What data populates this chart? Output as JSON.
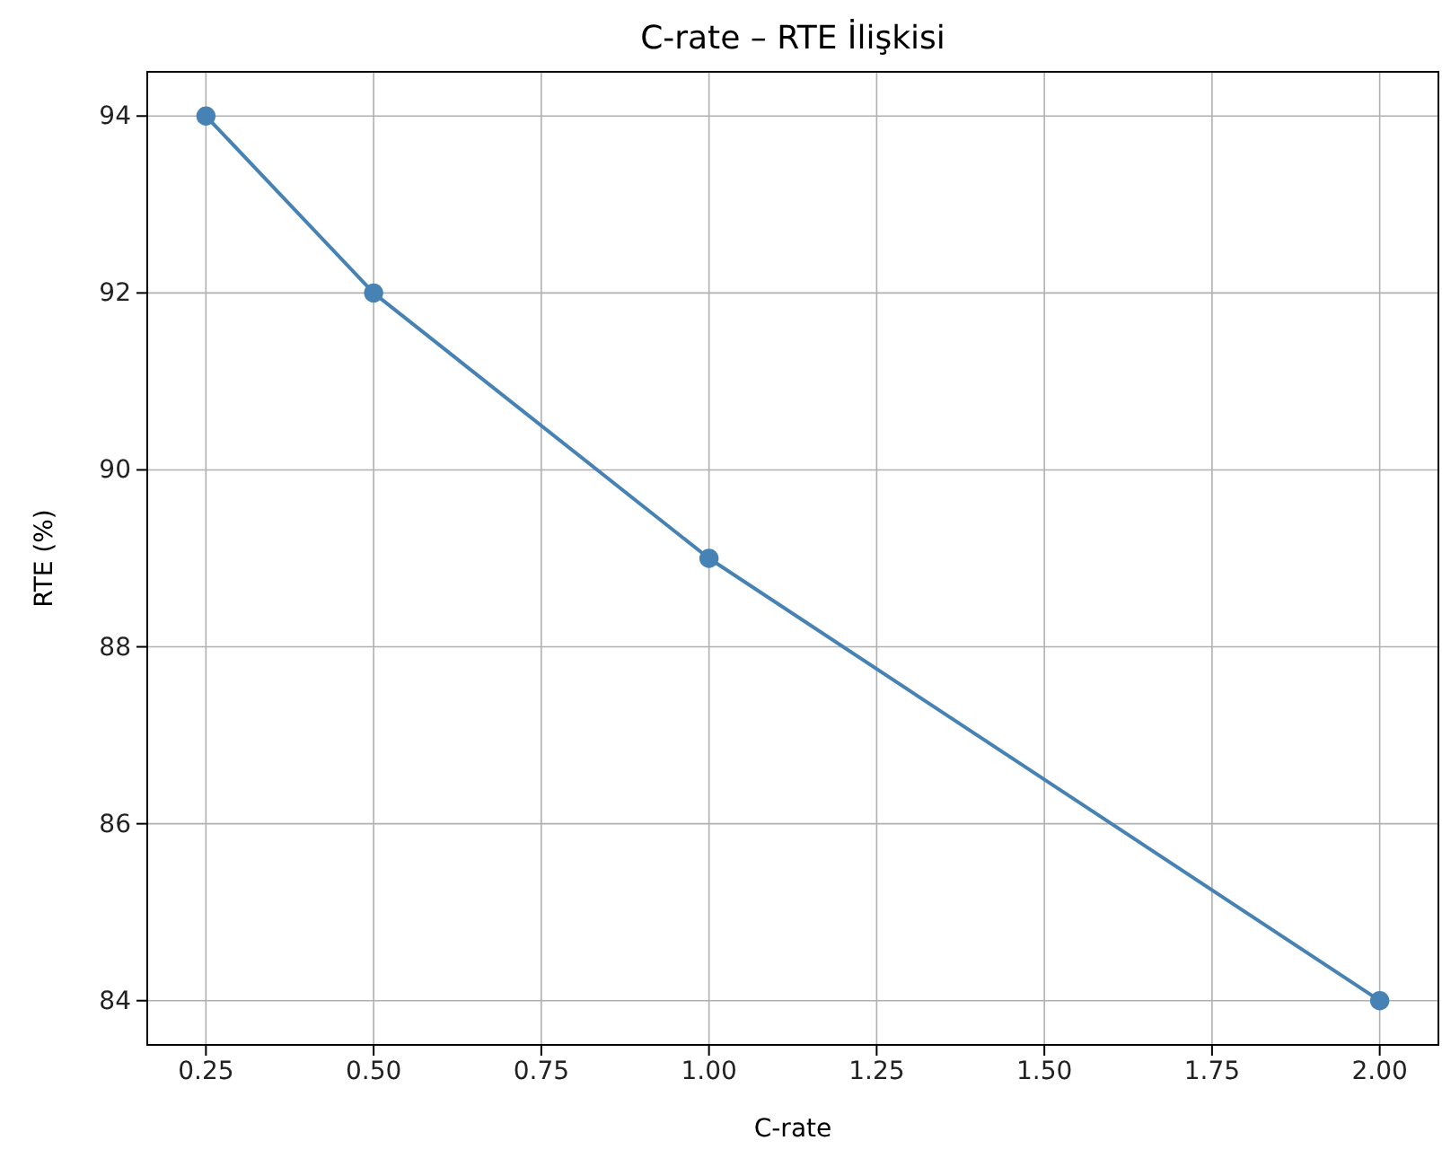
{
  "chart_data": {
    "type": "line",
    "title": "C-rate – RTE İlişkisi",
    "xlabel": "C-rate",
    "ylabel": "RTE (%)",
    "x": [
      0.25,
      0.5,
      1.0,
      2.0
    ],
    "series": [
      {
        "color": "#4682b4",
        "values": [
          94,
          92,
          89,
          84
        ]
      }
    ],
    "xlim": [
      0.1625,
      2.0875
    ],
    "xticks": [
      {
        "value": 0.25,
        "label": "0.25"
      },
      {
        "value": 0.5,
        "label": "0.50"
      },
      {
        "value": 0.75,
        "label": "0.75"
      },
      {
        "value": 1.0,
        "label": "1.00"
      },
      {
        "value": 1.25,
        "label": "1.25"
      },
      {
        "value": 1.5,
        "label": "1.50"
      },
      {
        "value": 1.75,
        "label": "1.75"
      },
      {
        "value": 2.0,
        "label": "2.00"
      }
    ],
    "ylim": [
      83.5,
      94.5
    ],
    "yticks": [
      84,
      86,
      88,
      90,
      92,
      94
    ],
    "grid": true,
    "marker": "circle",
    "line_style": "solid"
  }
}
